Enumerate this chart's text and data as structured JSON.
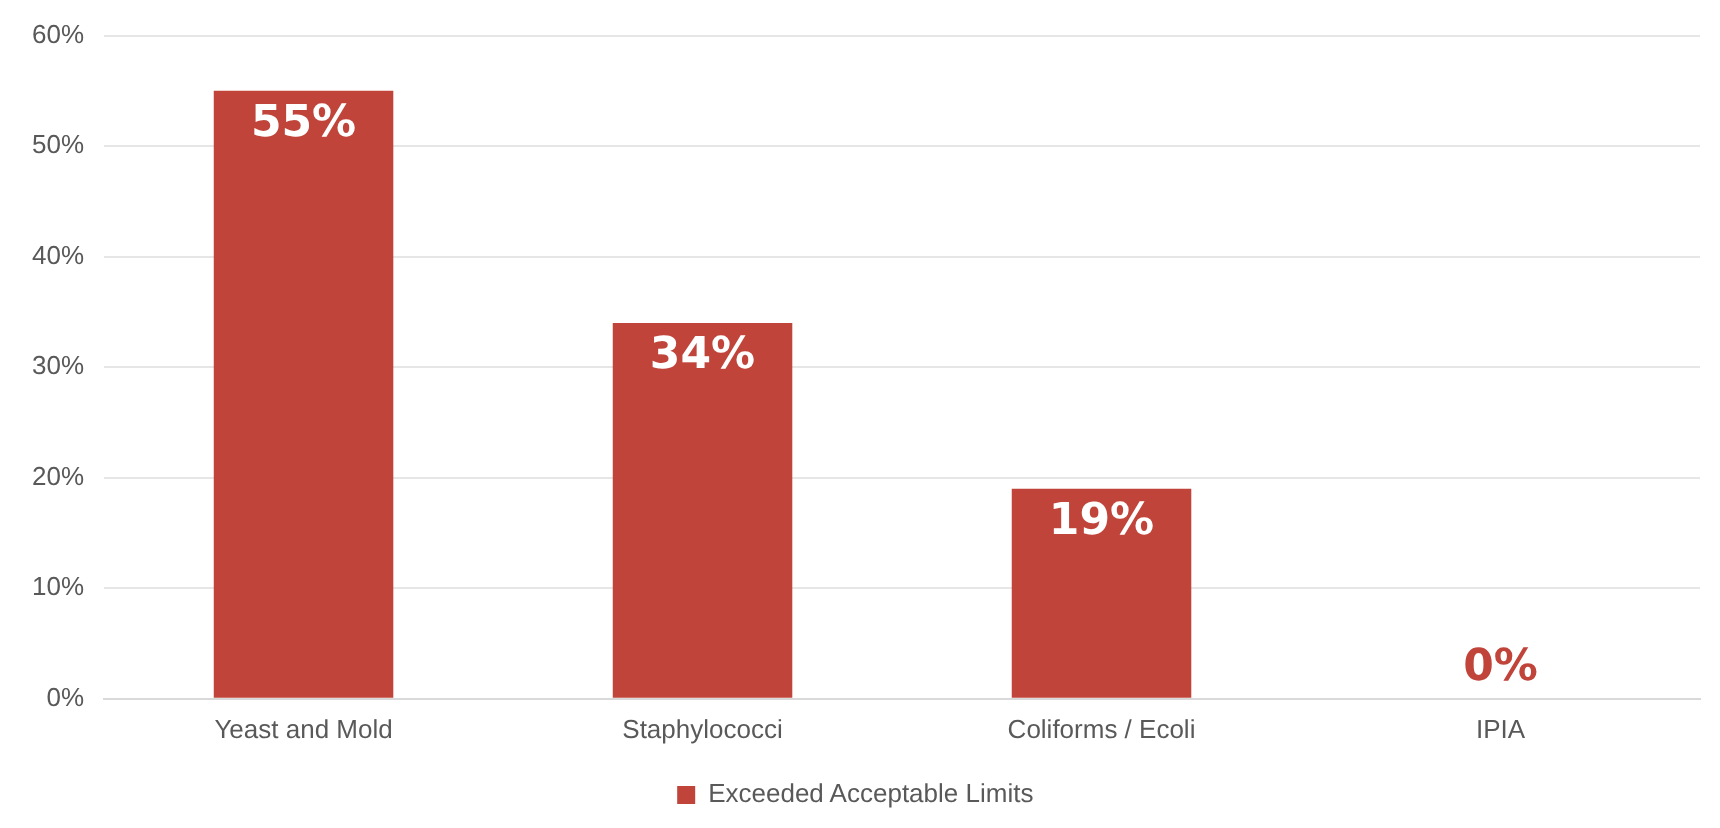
{
  "chart_data": {
    "type": "bar",
    "categories": [
      "Yeast and Mold",
      "Staphylococci",
      "Coliforms / Ecoli",
      "IPIA"
    ],
    "series": [
      {
        "name": "Exceeded Acceptable Limits",
        "color": "#c0443a",
        "values": [
          55,
          34,
          19,
          0
        ],
        "value_labels": [
          "55%",
          "34%",
          "19%",
          "0%"
        ]
      }
    ],
    "ylim": [
      0,
      60
    ],
    "yticks": [
      {
        "value": 0,
        "label": "0%"
      },
      {
        "value": 10,
        "label": "10%"
      },
      {
        "value": 20,
        "label": "20%"
      },
      {
        "value": 30,
        "label": "30%"
      },
      {
        "value": 40,
        "label": "40%"
      },
      {
        "value": 50,
        "label": "50%"
      },
      {
        "value": 60,
        "label": "60%"
      }
    ],
    "grid": "y",
    "legend": "bottom"
  }
}
